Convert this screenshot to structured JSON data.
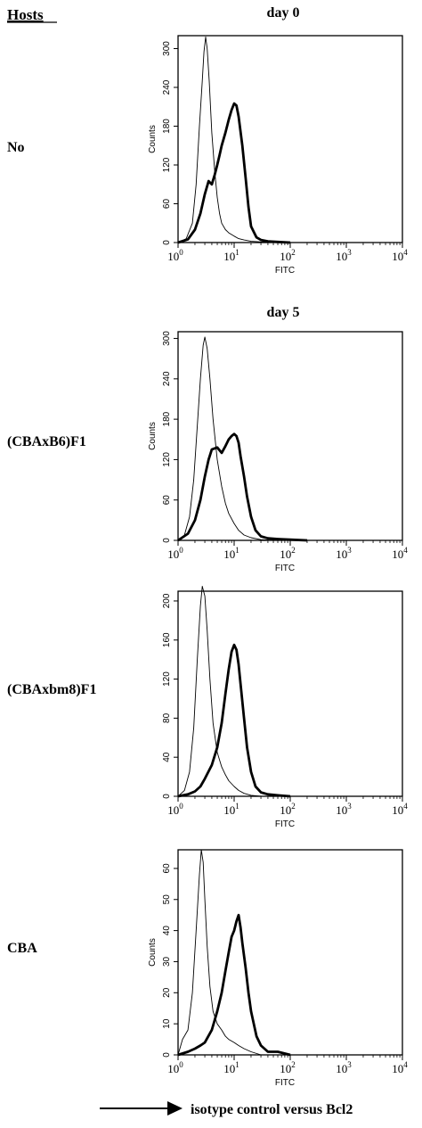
{
  "header": {
    "hosts_label": "Hosts",
    "legend_text": "isotype control versus Bcl2"
  },
  "chart_data": [
    {
      "type": "line",
      "host": "No",
      "day_label": "day 0",
      "xlabel": "FITC",
      "ylabel": "Counts",
      "xscale": "log",
      "xlim": [
        1,
        10000
      ],
      "ylim": [
        0,
        320
      ],
      "yticks": [
        0,
        60,
        120,
        180,
        240,
        300
      ],
      "xticks": [
        "10^0",
        "10^1",
        "10^2",
        "10^3",
        "10^4"
      ],
      "grid": false,
      "series": [
        {
          "style": "thin",
          "x": [
            1,
            1.4,
            1.8,
            2.1,
            2.4,
            2.7,
            2.9,
            3.1,
            3.3,
            3.6,
            4,
            4.5,
            5,
            5.5,
            6,
            7,
            8,
            10,
            12,
            15,
            20,
            30,
            50
          ],
          "y": [
            0,
            6,
            30,
            90,
            180,
            250,
            295,
            318,
            300,
            250,
            170,
            110,
            70,
            45,
            30,
            20,
            15,
            10,
            6,
            4,
            2,
            1,
            0
          ]
        },
        {
          "style": "thick",
          "x": [
            1,
            1.5,
            2,
            2.5,
            3,
            3.5,
            4,
            4.5,
            5,
            5.5,
            6,
            7,
            8,
            9,
            10,
            11,
            12,
            14,
            16,
            18,
            20,
            25,
            30,
            40,
            60,
            100
          ],
          "y": [
            0,
            5,
            20,
            45,
            75,
            95,
            90,
            105,
            120,
            135,
            150,
            170,
            190,
            205,
            215,
            212,
            195,
            150,
            100,
            55,
            25,
            8,
            4,
            2,
            1,
            0
          ]
        }
      ]
    },
    {
      "type": "line",
      "host": "(CBAxB6)F1",
      "day_label": "day 5",
      "xlabel": "FITC",
      "ylabel": "Counts",
      "xscale": "log",
      "xlim": [
        1,
        10000
      ],
      "ylim": [
        0,
        310
      ],
      "yticks": [
        0,
        60,
        120,
        180,
        240,
        300
      ],
      "xticks": [
        "10^0",
        "10^1",
        "10^2",
        "10^3",
        "10^4"
      ],
      "grid": false,
      "series": [
        {
          "style": "thin",
          "x": [
            1,
            1.3,
            1.6,
            1.9,
            2.2,
            2.5,
            2.8,
            3,
            3.3,
            3.7,
            4.2,
            5,
            6,
            7,
            8,
            10,
            12,
            15,
            20,
            30,
            50
          ],
          "y": [
            0,
            8,
            35,
            90,
            170,
            240,
            290,
            302,
            285,
            240,
            180,
            120,
            80,
            55,
            40,
            25,
            15,
            8,
            4,
            1,
            0
          ]
        },
        {
          "style": "thick",
          "x": [
            1,
            1.5,
            2,
            2.5,
            3,
            3.5,
            4,
            5,
            6,
            7,
            8,
            9,
            10,
            11,
            12,
            13,
            15,
            17,
            20,
            24,
            30,
            40,
            60,
            100,
            200
          ],
          "y": [
            0,
            10,
            30,
            60,
            95,
            120,
            135,
            138,
            130,
            140,
            150,
            155,
            158,
            155,
            145,
            125,
            95,
            65,
            35,
            15,
            6,
            3,
            2,
            1,
            0
          ]
        }
      ]
    },
    {
      "type": "line",
      "host": "(CBAxbm8)F1",
      "day_label": "",
      "xlabel": "FITC",
      "ylabel": "",
      "xscale": "log",
      "xlim": [
        1,
        10000
      ],
      "ylim": [
        0,
        210
      ],
      "yticks": [
        0,
        40,
        80,
        120,
        160,
        200
      ],
      "xticks": [
        "10^0",
        "10^1",
        "10^2",
        "10^3",
        "10^4"
      ],
      "grid": false,
      "series": [
        {
          "style": "thin",
          "x": [
            1,
            1.3,
            1.6,
            1.9,
            2.2,
            2.5,
            2.7,
            3,
            3.3,
            3.7,
            4.2,
            5,
            6,
            7,
            8,
            10,
            12,
            15,
            20,
            30,
            50
          ],
          "y": [
            0,
            6,
            25,
            70,
            140,
            195,
            215,
            205,
            170,
            120,
            75,
            45,
            30,
            22,
            16,
            10,
            6,
            3,
            1,
            0,
            0
          ]
        },
        {
          "style": "thick",
          "x": [
            1,
            1.5,
            2,
            2.5,
            3,
            4,
            5,
            6,
            7,
            8,
            9,
            10,
            11,
            12,
            13,
            15,
            17,
            20,
            24,
            30,
            40,
            60,
            100
          ],
          "y": [
            0,
            2,
            5,
            10,
            18,
            32,
            50,
            75,
            105,
            130,
            148,
            155,
            150,
            135,
            115,
            80,
            50,
            25,
            10,
            4,
            2,
            1,
            0
          ]
        }
      ]
    },
    {
      "type": "line",
      "host": "CBA",
      "day_label": "",
      "xlabel": "FITC",
      "ylabel": "Counts",
      "xscale": "log",
      "xlim": [
        1,
        10000
      ],
      "ylim": [
        0,
        66
      ],
      "yticks": [
        0,
        10,
        20,
        30,
        40,
        50,
        60
      ],
      "xticks": [
        "10^0",
        "10^1",
        "10^2",
        "10^3",
        "10^4"
      ],
      "grid": false,
      "series": [
        {
          "style": "thin",
          "x": [
            1,
            1.2,
            1.5,
            1.8,
            2.1,
            2.4,
            2.6,
            2.8,
            3,
            3.3,
            3.7,
            4.2,
            5,
            6,
            7,
            8,
            10,
            12,
            15,
            20,
            30,
            50
          ],
          "y": [
            0,
            5,
            8,
            20,
            40,
            58,
            66,
            62,
            50,
            35,
            22,
            14,
            10,
            8,
            6,
            5,
            4,
            3,
            2,
            1,
            0,
            0
          ]
        },
        {
          "style": "thick",
          "x": [
            1,
            1.5,
            2,
            2.5,
            3,
            4,
            5,
            6,
            7,
            8,
            9,
            10,
            11,
            12,
            13,
            14,
            16,
            18,
            20,
            25,
            30,
            40,
            60,
            100
          ],
          "y": [
            0,
            1,
            2,
            3,
            4,
            8,
            14,
            20,
            27,
            33,
            38,
            40,
            43,
            45,
            41,
            36,
            28,
            20,
            14,
            6,
            3,
            1,
            1,
            0
          ]
        }
      ]
    }
  ]
}
